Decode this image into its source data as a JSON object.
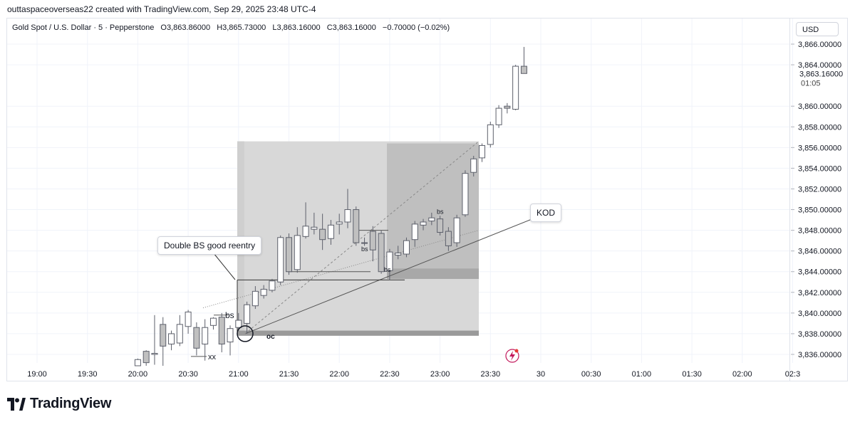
{
  "header": {
    "credit": "outtaspaceoverseas22 created with TradingView.com, Sep 29, 2025 23:48 UTC-4"
  },
  "legend": {
    "symbol": "Gold Spot / U.S. Dollar · 5 · Pepperstone",
    "open": "O3,863.86000",
    "high": "H3,865.73000",
    "low": "L3,863.16000",
    "close": "C3,863.16000",
    "change": "−0.70000 (−0.02%)"
  },
  "currency_label": "USD",
  "price_label": {
    "price": "3,863.16000",
    "countdown": "01:05"
  },
  "brand": {
    "name": "TradingView"
  },
  "colors": {
    "grid": "#f0f3fa",
    "candle_edge": "#5d606b",
    "bull_fill": "#ffffff",
    "bear_fill": "#c0c0c0",
    "box_light": "#d6d6d6",
    "box_dark": "#bdbdbd",
    "zone": "#a8a8a8"
  },
  "chart_data": {
    "type": "candlestick",
    "symbol": "Gold Spot / U.S. Dollar",
    "interval": "5",
    "x_ticks": [
      "19:00",
      "19:30",
      "20:00",
      "20:30",
      "21:00",
      "21:30",
      "22:00",
      "22:30",
      "23:00",
      "23:30",
      "30",
      "00:30",
      "01:00",
      "01:30",
      "02:00",
      "02:3"
    ],
    "y_ticks": [
      "3,866.00000",
      "3,864.00000",
      "3,860.00000",
      "3,858.00000",
      "3,856.00000",
      "3,854.00000",
      "3,852.00000",
      "3,850.00000",
      "3,848.00000",
      "3,846.00000",
      "3,844.00000",
      "3,842.00000",
      "3,840.00000",
      "3,838.00000",
      "3,836.00000"
    ],
    "y_tick_values": [
      3866,
      3864,
      3860,
      3858,
      3856,
      3854,
      3852,
      3850,
      3848,
      3846,
      3844,
      3842,
      3840,
      3838,
      3836
    ],
    "ylim": [
      3834.9,
      3868
    ],
    "candles": [
      {
        "t": "20:00",
        "o": 3834.9,
        "h": 3835.6,
        "l": 3834.9,
        "c": 3835.5
      },
      {
        "t": "20:05",
        "o": 3836.3,
        "h": 3836.4,
        "l": 3834.9,
        "c": 3835.2
      },
      {
        "t": "20:10",
        "o": 3836.0,
        "h": 3839.8,
        "l": 3835.0,
        "c": 3836.1
      },
      {
        "t": "20:15",
        "o": 3838.9,
        "h": 3839.6,
        "l": 3834.9,
        "c": 3836.8
      },
      {
        "t": "20:20",
        "o": 3837.0,
        "h": 3838.3,
        "l": 3836.4,
        "c": 3838.0
      },
      {
        "t": "20:25",
        "o": 3837.1,
        "h": 3839.8,
        "l": 3836.8,
        "c": 3838.9
      },
      {
        "t": "20:30",
        "o": 3838.7,
        "h": 3840.3,
        "l": 3838.0,
        "c": 3840.1
      },
      {
        "t": "20:35",
        "o": 3838.6,
        "h": 3839.1,
        "l": 3835.9,
        "c": 3836.6
      },
      {
        "t": "20:40",
        "o": 3837.0,
        "h": 3839.4,
        "l": 3835.4,
        "c": 3838.6
      },
      {
        "t": "20:45",
        "o": 3838.8,
        "h": 3839.6,
        "l": 3838.4,
        "c": 3839.5
      },
      {
        "t": "20:50",
        "o": 3839.6,
        "h": 3840.0,
        "l": 3836.2,
        "c": 3837.0
      },
      {
        "t": "20:55",
        "o": 3837.2,
        "h": 3838.8,
        "l": 3835.9,
        "c": 3838.5
      },
      {
        "t": "21:00",
        "o": 3838.6,
        "h": 3840.0,
        "l": 3838.3,
        "c": 3839.3
      },
      {
        "t": "21:05",
        "o": 3839.0,
        "h": 3841.1,
        "l": 3838.0,
        "c": 3840.8
      },
      {
        "t": "21:10",
        "o": 3840.7,
        "h": 3842.6,
        "l": 3840.4,
        "c": 3842.1
      },
      {
        "t": "21:15",
        "o": 3841.7,
        "h": 3842.7,
        "l": 3841.4,
        "c": 3842.3
      },
      {
        "t": "21:20",
        "o": 3842.2,
        "h": 3843.3,
        "l": 3842.0,
        "c": 3843.1
      },
      {
        "t": "21:25",
        "o": 3843.0,
        "h": 3847.5,
        "l": 3842.7,
        "c": 3847.3
      },
      {
        "t": "21:30",
        "o": 3847.3,
        "h": 3847.7,
        "l": 3843.7,
        "c": 3844.0
      },
      {
        "t": "21:35",
        "o": 3844.2,
        "h": 3848.3,
        "l": 3843.9,
        "c": 3847.5
      },
      {
        "t": "21:40",
        "o": 3847.4,
        "h": 3850.7,
        "l": 3847.2,
        "c": 3848.4
      },
      {
        "t": "21:45",
        "o": 3848.1,
        "h": 3849.7,
        "l": 3847.6,
        "c": 3848.3
      },
      {
        "t": "21:50",
        "o": 3848.1,
        "h": 3849.6,
        "l": 3846.1,
        "c": 3847.1
      },
      {
        "t": "21:55",
        "o": 3847.2,
        "h": 3849.0,
        "l": 3846.6,
        "c": 3848.5
      },
      {
        "t": "22:00",
        "o": 3848.6,
        "h": 3849.6,
        "l": 3847.6,
        "c": 3848.8
      },
      {
        "t": "22:05",
        "o": 3848.8,
        "h": 3852.0,
        "l": 3848.2,
        "c": 3850.0
      },
      {
        "t": "22:10",
        "o": 3850.0,
        "h": 3850.3,
        "l": 3846.5,
        "c": 3846.8
      },
      {
        "t": "22:15",
        "o": 3846.8,
        "h": 3847.3,
        "l": 3846.5,
        "c": 3846.8
      },
      {
        "t": "22:20",
        "o": 3847.9,
        "h": 3848.4,
        "l": 3845.0,
        "c": 3846.1
      },
      {
        "t": "22:25",
        "o": 3847.7,
        "h": 3848.0,
        "l": 3843.8,
        "c": 3844.0
      },
      {
        "t": "22:30",
        "o": 3844.1,
        "h": 3846.2,
        "l": 3843.2,
        "c": 3845.9
      },
      {
        "t": "22:35",
        "o": 3845.6,
        "h": 3846.5,
        "l": 3845.2,
        "c": 3845.8
      },
      {
        "t": "22:40",
        "o": 3845.7,
        "h": 3847.3,
        "l": 3845.4,
        "c": 3847.0
      },
      {
        "t": "22:45",
        "o": 3847.1,
        "h": 3848.9,
        "l": 3846.4,
        "c": 3848.6
      },
      {
        "t": "22:50",
        "o": 3848.5,
        "h": 3849.1,
        "l": 3848.0,
        "c": 3848.8
      },
      {
        "t": "22:55",
        "o": 3848.9,
        "h": 3849.7,
        "l": 3848.5,
        "c": 3849.2
      },
      {
        "t": "23:00",
        "o": 3849.1,
        "h": 3849.4,
        "l": 3847.5,
        "c": 3847.8
      },
      {
        "t": "23:05",
        "o": 3847.9,
        "h": 3848.3,
        "l": 3846.0,
        "c": 3846.5
      },
      {
        "t": "23:10",
        "o": 3846.8,
        "h": 3849.5,
        "l": 3846.4,
        "c": 3849.2
      },
      {
        "t": "23:15",
        "o": 3849.5,
        "h": 3853.8,
        "l": 3849.3,
        "c": 3853.5
      },
      {
        "t": "23:20",
        "o": 3853.6,
        "h": 3855.2,
        "l": 3853.2,
        "c": 3854.9
      },
      {
        "t": "23:25",
        "o": 3855.0,
        "h": 3856.4,
        "l": 3854.6,
        "c": 3856.2
      },
      {
        "t": "23:30",
        "o": 3856.3,
        "h": 3858.5,
        "l": 3856.0,
        "c": 3858.2
      },
      {
        "t": "23:35",
        "o": 3858.2,
        "h": 3860.1,
        "l": 3857.9,
        "c": 3859.8
      },
      {
        "t": "23:40",
        "o": 3860.0,
        "h": 3860.3,
        "l": 3859.3,
        "c": 3859.8
      },
      {
        "t": "23:45",
        "o": 3859.7,
        "h": 3864.0,
        "l": 3859.6,
        "c": 3863.86
      },
      {
        "t": "23:50",
        "o": 3863.86,
        "h": 3865.73,
        "l": 3863.16,
        "c": 3863.16
      }
    ],
    "annotations": {
      "callout_reentry": "Double BS good reentry",
      "callout_kod": "KOD",
      "label_oc": "oc",
      "label_xx": "xx",
      "label_bs_1": "bs",
      "label_bs_2": "bs",
      "label_bs_3": "bs",
      "label_bs_4": "bs"
    },
    "grid": true
  }
}
